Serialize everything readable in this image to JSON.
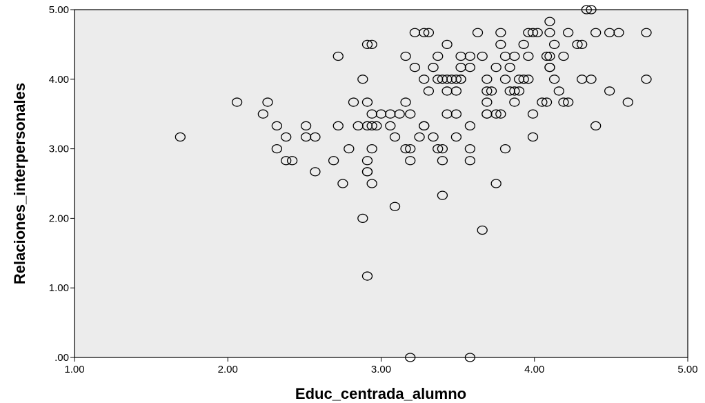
{
  "chart_data": {
    "type": "scatter",
    "xlabel": "Educ_centrada_alumno",
    "ylabel": "Relaciones_interpersonales",
    "xlim": [
      1.0,
      5.0
    ],
    "ylim": [
      0.0,
      5.0
    ],
    "x_ticks": [
      1.0,
      2.0,
      3.0,
      4.0,
      5.0
    ],
    "x_tick_labels": [
      "1.00",
      "2.00",
      "3.00",
      "4.00",
      "5.00"
    ],
    "y_ticks": [
      0.0,
      1.0,
      2.0,
      3.0,
      4.0,
      5.0
    ],
    "y_tick_labels": [
      ".00",
      "1.00",
      "2.00",
      "3.00",
      "4.00",
      "5.00"
    ],
    "grid": false,
    "background_color": "#ececec",
    "marker": "open-circle",
    "points": [
      [
        1.69,
        3.17
      ],
      [
        2.06,
        3.67
      ],
      [
        2.23,
        3.5
      ],
      [
        2.26,
        3.67
      ],
      [
        2.32,
        3.33
      ],
      [
        2.32,
        3.0
      ],
      [
        2.38,
        3.17
      ],
      [
        2.38,
        2.83
      ],
      [
        2.42,
        2.83
      ],
      [
        2.51,
        3.33
      ],
      [
        2.51,
        3.17
      ],
      [
        2.57,
        3.17
      ],
      [
        2.57,
        2.67
      ],
      [
        2.69,
        2.83
      ],
      [
        2.72,
        3.33
      ],
      [
        2.72,
        4.33
      ],
      [
        2.75,
        2.5
      ],
      [
        2.79,
        3.0
      ],
      [
        2.82,
        3.67
      ],
      [
        2.85,
        3.33
      ],
      [
        2.88,
        4.0
      ],
      [
        2.88,
        2.0
      ],
      [
        2.91,
        4.5
      ],
      [
        2.91,
        3.67
      ],
      [
        2.91,
        3.33
      ],
      [
        2.91,
        2.83
      ],
      [
        2.91,
        2.67
      ],
      [
        2.91,
        2.67
      ],
      [
        2.91,
        1.17
      ],
      [
        2.94,
        4.5
      ],
      [
        2.94,
        3.5
      ],
      [
        2.94,
        3.33
      ],
      [
        2.94,
        3.0
      ],
      [
        2.94,
        2.5
      ],
      [
        2.97,
        3.33
      ],
      [
        3.0,
        3.5
      ],
      [
        3.06,
        3.5
      ],
      [
        3.06,
        3.33
      ],
      [
        3.09,
        3.17
      ],
      [
        3.09,
        2.17
      ],
      [
        3.12,
        3.5
      ],
      [
        3.16,
        4.33
      ],
      [
        3.16,
        3.67
      ],
      [
        3.16,
        3.0
      ],
      [
        3.19,
        3.5
      ],
      [
        3.19,
        3.0
      ],
      [
        3.19,
        2.83
      ],
      [
        3.19,
        0.0
      ],
      [
        3.22,
        4.67
      ],
      [
        3.22,
        4.17
      ],
      [
        3.25,
        3.17
      ],
      [
        3.28,
        4.67
      ],
      [
        3.28,
        4.0
      ],
      [
        3.28,
        3.33
      ],
      [
        3.28,
        3.33
      ],
      [
        3.31,
        4.67
      ],
      [
        3.31,
        3.83
      ],
      [
        3.34,
        4.17
      ],
      [
        3.34,
        3.17
      ],
      [
        3.37,
        4.33
      ],
      [
        3.37,
        4.0
      ],
      [
        3.37,
        3.0
      ],
      [
        3.4,
        4.0
      ],
      [
        3.4,
        3.0
      ],
      [
        3.4,
        2.83
      ],
      [
        3.4,
        2.33
      ],
      [
        3.43,
        4.5
      ],
      [
        3.43,
        4.0
      ],
      [
        3.43,
        3.83
      ],
      [
        3.43,
        3.5
      ],
      [
        3.46,
        4.0
      ],
      [
        3.49,
        4.0
      ],
      [
        3.49,
        3.83
      ],
      [
        3.49,
        3.5
      ],
      [
        3.49,
        3.17
      ],
      [
        3.52,
        4.33
      ],
      [
        3.52,
        4.17
      ],
      [
        3.52,
        4.0
      ],
      [
        3.52,
        4.0
      ],
      [
        3.58,
        4.33
      ],
      [
        3.58,
        4.17
      ],
      [
        3.58,
        3.33
      ],
      [
        3.58,
        3.0
      ],
      [
        3.58,
        2.83
      ],
      [
        3.58,
        0.0
      ],
      [
        3.63,
        4.67
      ],
      [
        3.66,
        4.33
      ],
      [
        3.66,
        1.83
      ],
      [
        3.69,
        4.0
      ],
      [
        3.69,
        3.83
      ],
      [
        3.69,
        3.67
      ],
      [
        3.69,
        3.5
      ],
      [
        3.69,
        3.5
      ],
      [
        3.72,
        3.83
      ],
      [
        3.75,
        4.17
      ],
      [
        3.75,
        3.5
      ],
      [
        3.75,
        2.5
      ],
      [
        3.78,
        4.67
      ],
      [
        3.78,
        4.5
      ],
      [
        3.78,
        3.5
      ],
      [
        3.81,
        4.33
      ],
      [
        3.81,
        4.0
      ],
      [
        3.81,
        3.0
      ],
      [
        3.84,
        4.17
      ],
      [
        3.84,
        3.83
      ],
      [
        3.87,
        4.33
      ],
      [
        3.87,
        3.83
      ],
      [
        3.87,
        3.67
      ],
      [
        3.9,
        4.0
      ],
      [
        3.9,
        3.83
      ],
      [
        3.93,
        4.5
      ],
      [
        3.93,
        4.0
      ],
      [
        3.96,
        4.67
      ],
      [
        3.96,
        4.33
      ],
      [
        3.96,
        4.0
      ],
      [
        3.99,
        4.67
      ],
      [
        3.99,
        3.5
      ],
      [
        3.99,
        3.17
      ],
      [
        4.02,
        4.67
      ],
      [
        4.05,
        3.67
      ],
      [
        4.08,
        4.33
      ],
      [
        4.08,
        3.67
      ],
      [
        4.1,
        4.83
      ],
      [
        4.1,
        4.67
      ],
      [
        4.1,
        4.33
      ],
      [
        4.1,
        4.17
      ],
      [
        4.1,
        4.17
      ],
      [
        4.13,
        4.5
      ],
      [
        4.13,
        4.0
      ],
      [
        4.16,
        3.83
      ],
      [
        4.19,
        4.33
      ],
      [
        4.19,
        3.67
      ],
      [
        4.22,
        4.67
      ],
      [
        4.22,
        3.67
      ],
      [
        4.28,
        4.5
      ],
      [
        4.31,
        4.5
      ],
      [
        4.31,
        4.0
      ],
      [
        4.34,
        5.0
      ],
      [
        4.37,
        5.0
      ],
      [
        4.37,
        4.0
      ],
      [
        4.4,
        4.67
      ],
      [
        4.4,
        3.33
      ],
      [
        4.49,
        4.67
      ],
      [
        4.49,
        3.83
      ],
      [
        4.55,
        4.67
      ],
      [
        4.61,
        3.67
      ],
      [
        4.73,
        4.67
      ],
      [
        4.73,
        4.0
      ]
    ]
  }
}
